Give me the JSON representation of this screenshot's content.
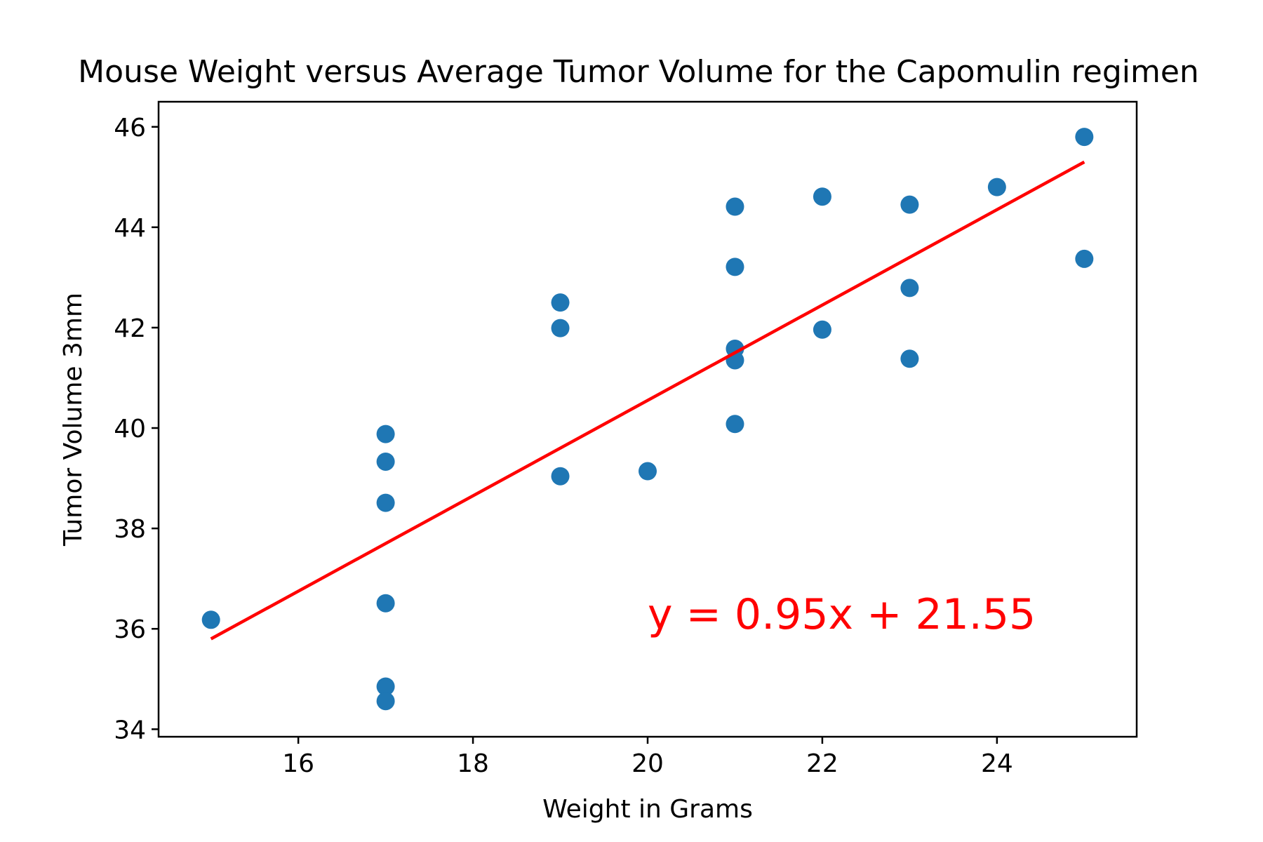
{
  "chart_data": {
    "type": "scatter",
    "title": "Mouse Weight versus Average Tumor Volume for the Capomulin regimen",
    "xlabel": "Weight in Grams",
    "ylabel": "Tumor Volume 3mm",
    "xlim": [
      14.4,
      25.6
    ],
    "ylim": [
      33.85,
      46.5
    ],
    "xticks": [
      16,
      18,
      20,
      22,
      24
    ],
    "yticks": [
      34,
      36,
      38,
      40,
      42,
      44,
      46
    ],
    "grid": false,
    "series": [
      {
        "color": "#1f77b4",
        "points": [
          [
            15,
            36.18
          ],
          [
            17,
            39.88
          ],
          [
            17,
            39.33
          ],
          [
            17,
            38.51
          ],
          [
            17,
            36.51
          ],
          [
            17,
            34.85
          ],
          [
            17,
            34.56
          ],
          [
            19,
            42.5
          ],
          [
            19,
            41.99
          ],
          [
            19,
            39.04
          ],
          [
            20,
            39.14
          ],
          [
            21,
            44.41
          ],
          [
            21,
            43.21
          ],
          [
            21,
            41.58
          ],
          [
            21,
            41.35
          ],
          [
            21,
            40.08
          ],
          [
            22,
            44.61
          ],
          [
            22,
            41.96
          ],
          [
            23,
            44.45
          ],
          [
            23,
            42.79
          ],
          [
            23,
            41.38
          ],
          [
            24,
            44.8
          ],
          [
            25,
            45.8
          ],
          [
            25,
            43.37
          ]
        ]
      }
    ],
    "regression": {
      "slope": 0.95,
      "intercept": 21.55,
      "x_range": [
        15,
        25
      ],
      "color": "#ff0000",
      "label": "y = 0.95x + 21.55",
      "label_at": [
        20,
        36
      ]
    }
  }
}
